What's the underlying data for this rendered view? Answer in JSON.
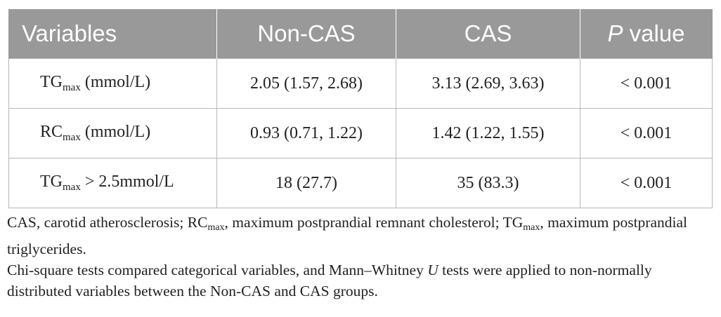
{
  "table": {
    "headers": {
      "variables": "Variables",
      "non_cas": "Non-CAS",
      "cas": "CAS",
      "p_italic": "P",
      "p_rest": " value"
    },
    "rows": [
      {
        "var_main": "TG",
        "var_sub": "max",
        "var_unit": " (mmol/L)",
        "non_cas": "2.05 (1.57, 2.68)",
        "cas": "3.13 (2.69, 3.63)",
        "p": "< 0.001"
      },
      {
        "var_main": "RC",
        "var_sub": "max",
        "var_unit": " (mmol/L)",
        "non_cas": "0.93 (0.71, 1.22)",
        "cas": "1.42 (1.22, 1.55)",
        "p": "< 0.001"
      },
      {
        "var_main": "TG",
        "var_sub": "max",
        "var_unit": " > 2.5mmol/L",
        "non_cas": "18 (27.7)",
        "cas": "35 (83.3)",
        "p": "< 0.001"
      }
    ]
  },
  "notes": {
    "abbrev": {
      "part1": "CAS, carotid atherosclerosis; RC",
      "sub1": "max",
      "part2": ", maximum postprandial remnant cholesterol; TG",
      "sub2": "max",
      "part3": ", maximum postprandial triglycerides."
    },
    "methods": {
      "part1": "Chi-square tests compared categorical variables, and Mann–Whitney ",
      "italic": "U",
      "part2": " tests were applied to non-normally distributed variables between the Non-CAS and CAS groups."
    }
  },
  "colors": {
    "header_bg": "#999999",
    "header_text": "#ffffff",
    "border": "#b8b8b8",
    "text": "#222222"
  }
}
